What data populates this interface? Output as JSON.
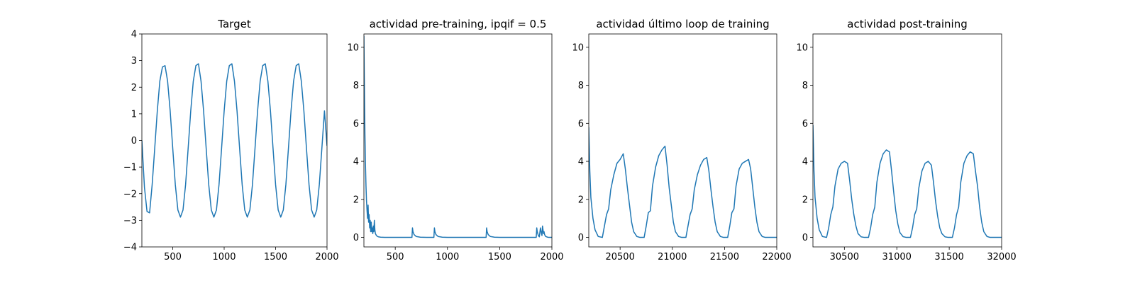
{
  "figure": {
    "background": "#ffffff",
    "line_color": "#1f77b4"
  },
  "chart_data": [
    {
      "type": "line",
      "title": "Target",
      "xlabel": "",
      "ylabel": "",
      "xlim": [
        200,
        2000
      ],
      "ylim": [
        -4,
        4
      ],
      "xticks": [
        500,
        1000,
        1500,
        2000
      ],
      "yticks": [
        -4,
        -3,
        -2,
        -1,
        0,
        1,
        2,
        3,
        4
      ],
      "xtick_labels": [
        "500",
        "1000",
        "1500",
        "2000"
      ],
      "ytick_labels": [
        "−4",
        "−3",
        "−2",
        "−1",
        "0",
        "1",
        "2",
        "3",
        "4"
      ],
      "grid": false,
      "series": [
        {
          "x": [
            200,
            225,
            250,
            275,
            300,
            325,
            350,
            375,
            400,
            425,
            450,
            475,
            500,
            525,
            550,
            575,
            600,
            625,
            650,
            675,
            700,
            725,
            750,
            775,
            800,
            825,
            850,
            875,
            900,
            925,
            950,
            975,
            1000,
            1025,
            1050,
            1075,
            1100,
            1125,
            1150,
            1175,
            1200,
            1225,
            1250,
            1275,
            1300,
            1325,
            1350,
            1375,
            1400,
            1425,
            1450,
            1475,
            1500,
            1525,
            1550,
            1575,
            1600,
            1625,
            1650,
            1675,
            1700,
            1725,
            1750,
            1775,
            1800,
            1825,
            1850,
            1875,
            1900,
            1925,
            1950,
            1975,
            2000
          ],
          "y": [
            0.0,
            -1.76,
            -2.67,
            -2.72,
            -1.66,
            -0.29,
            1.11,
            2.24,
            2.76,
            2.81,
            2.23,
            1.11,
            -0.29,
            -1.66,
            -2.61,
            -2.88,
            -2.61,
            -1.66,
            -0.29,
            1.11,
            2.23,
            2.81,
            2.88,
            2.23,
            1.11,
            -0.29,
            -1.66,
            -2.61,
            -2.88,
            -2.61,
            -1.66,
            -0.29,
            1.11,
            2.23,
            2.81,
            2.88,
            2.23,
            1.11,
            -0.29,
            -1.66,
            -2.61,
            -2.88,
            -2.61,
            -1.66,
            -0.29,
            1.11,
            2.23,
            2.81,
            2.88,
            2.23,
            1.11,
            -0.29,
            -1.66,
            -2.61,
            -2.88,
            -2.61,
            -1.66,
            -0.29,
            1.11,
            2.23,
            2.81,
            2.88,
            2.23,
            1.11,
            -0.29,
            -1.66,
            -2.61,
            -2.88,
            -2.61,
            -1.66,
            -0.29,
            1.11,
            -0.2
          ]
        }
      ]
    },
    {
      "type": "line",
      "title": "actividad pre-training, ipqif = 0.5",
      "xlabel": "",
      "ylabel": "",
      "xlim": [
        200,
        2000
      ],
      "ylim": [
        -0.5,
        10.7
      ],
      "xticks": [
        500,
        1000,
        1500,
        2000
      ],
      "yticks": [
        0,
        2,
        4,
        6,
        8,
        10
      ],
      "xtick_labels": [
        "500",
        "1000",
        "1500",
        "2000"
      ],
      "ytick_labels": [
        "0",
        "2",
        "4",
        "6",
        "8",
        "10"
      ],
      "grid": false,
      "series": [
        {
          "x": [
            200,
            203,
            206,
            210,
            215,
            220,
            225,
            230,
            235,
            240,
            245,
            250,
            255,
            260,
            265,
            270,
            275,
            280,
            285,
            290,
            295,
            300,
            305,
            310,
            315,
            320,
            330,
            340,
            360,
            400,
            500,
            600,
            660,
            665,
            670,
            680,
            700,
            740,
            800,
            870,
            875,
            880,
            890,
            910,
            950,
            1000,
            1100,
            1200,
            1300,
            1370,
            1375,
            1380,
            1390,
            1410,
            1450,
            1500,
            1600,
            1700,
            1800,
            1850,
            1855,
            1860,
            1870,
            1880,
            1890,
            1900,
            1905,
            1910,
            1915,
            1920,
            1925,
            1930,
            1935,
            1940,
            1950,
            1960,
            1970,
            1980,
            1990,
            2000
          ],
          "y": [
            10.6,
            8.8,
            7.2,
            5.4,
            3.8,
            2.7,
            1.9,
            1.4,
            1.0,
            1.7,
            0.8,
            1.2,
            0.5,
            0.9,
            0.3,
            0.8,
            0.3,
            0.5,
            0.2,
            0.6,
            0.3,
            0.9,
            0.4,
            0.2,
            0.15,
            0.1,
            0.05,
            0.03,
            0.01,
            0.0,
            0.0,
            0.0,
            0.0,
            0.5,
            0.3,
            0.15,
            0.05,
            0.01,
            0.0,
            0.0,
            0.5,
            0.3,
            0.15,
            0.05,
            0.01,
            0.0,
            0.0,
            0.0,
            0.0,
            0.0,
            0.5,
            0.3,
            0.15,
            0.05,
            0.01,
            0.0,
            0.0,
            0.0,
            0.0,
            0.0,
            0.5,
            0.3,
            0.1,
            0.03,
            0.5,
            0.2,
            0.1,
            0.6,
            0.4,
            0.2,
            0.3,
            0.15,
            0.1,
            0.05,
            0.03,
            0.01,
            0.0,
            0.0,
            0.0,
            0.0
          ]
        }
      ]
    },
    {
      "type": "line",
      "title": "actividad último loop de training",
      "xlabel": "",
      "ylabel": "",
      "xlim": [
        20200,
        22000
      ],
      "ylim": [
        -0.5,
        10.7
      ],
      "xticks": [
        20500,
        21000,
        21500,
        22000
      ],
      "yticks": [
        0,
        2,
        4,
        6,
        8,
        10
      ],
      "xtick_labels": [
        "20500",
        "21000",
        "21500",
        "22000"
      ],
      "ytick_labels": [
        "0",
        "2",
        "4",
        "6",
        "8",
        "10"
      ],
      "grid": false,
      "series": [
        {
          "x": [
            20200,
            20210,
            20220,
            20240,
            20260,
            20290,
            20330,
            20350,
            20370,
            20390,
            20410,
            20440,
            20470,
            20500,
            20530,
            20550,
            20570,
            20590,
            20610,
            20630,
            20660,
            20690,
            20730,
            20750,
            20770,
            20790,
            20810,
            20840,
            20870,
            20900,
            20930,
            20950,
            20970,
            20990,
            21010,
            21030,
            21060,
            21090,
            21130,
            21150,
            21170,
            21190,
            21210,
            21240,
            21270,
            21300,
            21330,
            21350,
            21370,
            21390,
            21410,
            21430,
            21460,
            21490,
            21530,
            21550,
            21570,
            21590,
            21610,
            21640,
            21670,
            21700,
            21730,
            21750,
            21770,
            21790,
            21810,
            21830,
            21860,
            21890,
            21930,
            21960,
            22000
          ],
          "y": [
            5.8,
            3.5,
            2.1,
            1.0,
            0.4,
            0.05,
            0.0,
            0.6,
            1.2,
            1.5,
            2.5,
            3.3,
            3.9,
            4.1,
            4.4,
            3.6,
            2.6,
            1.7,
            0.8,
            0.3,
            0.05,
            0.0,
            0.0,
            0.6,
            1.3,
            1.4,
            2.7,
            3.7,
            4.3,
            4.6,
            4.8,
            3.8,
            2.6,
            1.7,
            0.8,
            0.3,
            0.05,
            0.0,
            0.0,
            0.6,
            1.2,
            1.5,
            2.5,
            3.3,
            3.8,
            4.1,
            4.2,
            3.5,
            2.5,
            1.6,
            0.8,
            0.3,
            0.05,
            0.0,
            0.0,
            0.6,
            1.3,
            1.5,
            2.7,
            3.6,
            3.9,
            4.0,
            4.1,
            3.6,
            2.6,
            1.6,
            0.8,
            0.3,
            0.05,
            0.0,
            0.0,
            0.0,
            0.0
          ]
        }
      ]
    },
    {
      "type": "line",
      "title": "actividad post-training",
      "xlabel": "",
      "ylabel": "",
      "xlim": [
        30200,
        32000
      ],
      "ylim": [
        -0.5,
        10.7
      ],
      "xticks": [
        30500,
        31000,
        31500,
        32000
      ],
      "yticks": [
        0,
        2,
        4,
        6,
        8,
        10
      ],
      "xtick_labels": [
        "30500",
        "31000",
        "31500",
        "32000"
      ],
      "ytick_labels": [
        "0",
        "2",
        "4",
        "6",
        "8",
        "10"
      ],
      "grid": false,
      "series": [
        {
          "x": [
            30200,
            30210,
            30220,
            30240,
            30260,
            30290,
            30330,
            30350,
            30370,
            30390,
            30410,
            30440,
            30470,
            30500,
            30530,
            30550,
            30570,
            30590,
            30610,
            30630,
            30660,
            30690,
            30730,
            30750,
            30770,
            30790,
            30810,
            30840,
            30870,
            30900,
            30930,
            30950,
            30970,
            30990,
            31010,
            31030,
            31060,
            31090,
            31130,
            31150,
            31170,
            31190,
            31210,
            31240,
            31270,
            31300,
            31330,
            31350,
            31370,
            31390,
            31410,
            31430,
            31460,
            31490,
            31530,
            31550,
            31570,
            31590,
            31610,
            31640,
            31670,
            31700,
            31730,
            31750,
            31770,
            31790,
            31810,
            31830,
            31860,
            31890,
            31930,
            31960,
            32000
          ],
          "y": [
            5.9,
            3.5,
            2.1,
            1.0,
            0.4,
            0.05,
            0.0,
            0.5,
            1.2,
            1.6,
            2.7,
            3.6,
            3.9,
            4.0,
            3.9,
            3.0,
            2.0,
            1.2,
            0.6,
            0.2,
            0.03,
            0.0,
            0.0,
            0.5,
            1.2,
            1.6,
            2.9,
            3.9,
            4.4,
            4.6,
            4.5,
            3.5,
            2.4,
            1.4,
            0.7,
            0.25,
            0.04,
            0.0,
            0.0,
            0.5,
            1.2,
            1.5,
            2.6,
            3.5,
            3.9,
            4.0,
            3.8,
            2.9,
            1.9,
            1.1,
            0.5,
            0.2,
            0.03,
            0.0,
            0.0,
            0.5,
            1.2,
            1.6,
            2.9,
            3.9,
            4.3,
            4.5,
            4.4,
            3.5,
            2.7,
            1.6,
            0.8,
            0.3,
            0.05,
            0.0,
            0.0,
            0.0,
            0.0
          ]
        }
      ]
    }
  ]
}
